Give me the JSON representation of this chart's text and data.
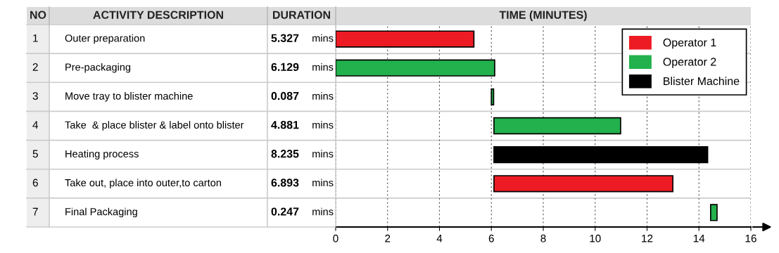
{
  "chart_data": {
    "type": "bar",
    "orientation": "horizontal",
    "title": "TIME (MINUTES)",
    "categories": [
      "Outer preparation",
      "Pre-packaging",
      "Move tray to blister machine",
      "Take  & place blister & label onto blister",
      "Heating process",
      "Take out, place into outer,to carton",
      "Final Packaging"
    ],
    "series": [
      {
        "name": "Operator 1",
        "color": "#ed1c24",
        "values": [
          5.327,
          null,
          null,
          null,
          null,
          6.893,
          null
        ],
        "base": [
          0,
          null,
          null,
          null,
          null,
          6.1,
          null
        ],
        "value_labels": [
          "5.327 mins",
          null,
          null,
          null,
          null,
          "6.893 mins",
          null
        ]
      },
      {
        "name": "Operator 2",
        "color": "#22b14c",
        "values": [
          null,
          6.129,
          0.087,
          4.881,
          null,
          null,
          0.247
        ],
        "base": [
          null,
          0,
          6.0,
          6.1,
          null,
          null,
          14.45
        ],
        "value_labels": [
          null,
          "6.129 mins",
          "0.087 mins",
          "4.881 mins",
          null,
          null,
          "0.247 mins"
        ]
      },
      {
        "name": "Blister Machine",
        "color": "#000000",
        "values": [
          null,
          null,
          null,
          null,
          8.235,
          null,
          null
        ],
        "base": [
          null,
          null,
          null,
          null,
          6.1,
          null,
          null
        ],
        "value_labels": [
          null,
          null,
          null,
          null,
          "8.235 mins",
          null,
          null
        ]
      }
    ],
    "xlim": [
      0,
      16
    ],
    "xticks": [
      0,
      2,
      4,
      6,
      8,
      10,
      12,
      14,
      16
    ],
    "annotations": [
      "NO",
      "ACTIVITY DESCRIPTION",
      "DURATION",
      "1",
      "2",
      "3",
      "4",
      "5",
      "6",
      "7"
    ],
    "grid": "x",
    "legend": "top right"
  }
}
